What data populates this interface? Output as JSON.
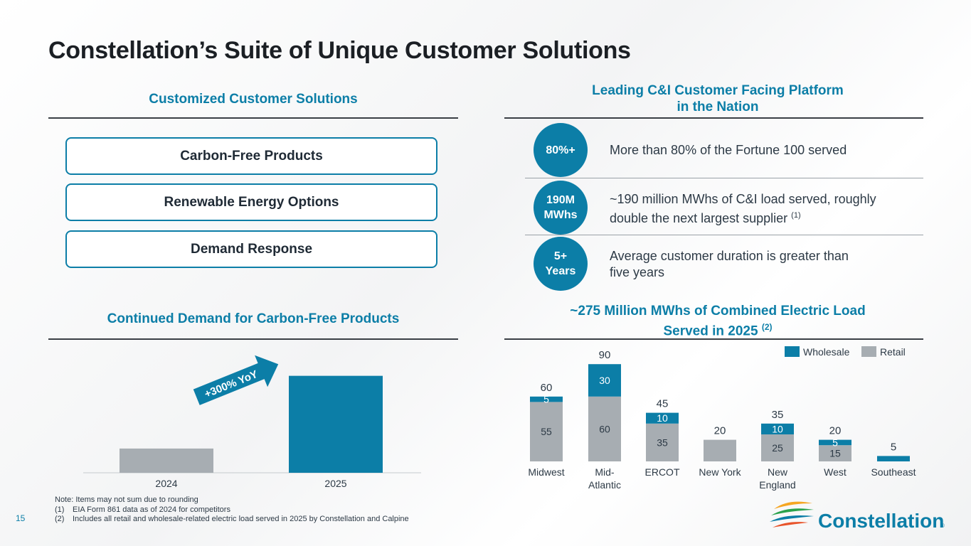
{
  "title": "Constellation’s Suite of Unique Customer Solutions",
  "left_panel": {
    "heading": "Customized Customer Solutions",
    "items": [
      "Carbon-Free Products",
      "Renewable Energy Options",
      "Demand Response"
    ]
  },
  "right_panel": {
    "heading_line1": "Leading C&I Customer Facing Platform",
    "heading_line2": "in the Nation",
    "stats": [
      {
        "badge_line1": "80%+",
        "badge_line2": "",
        "text_line1": "More than 80% of the Fortune 100 served",
        "text_line2": "",
        "sup": ""
      },
      {
        "badge_line1": "190M",
        "badge_line2": "MWhs",
        "text_line1": "~190 million MWhs of C&I load served, roughly",
        "text_line2": "double the next largest supplier ",
        "sup": "(1)"
      },
      {
        "badge_line1": "5+",
        "badge_line2": "Years",
        "text_line1": "Average customer duration is greater than",
        "text_line2": "five years",
        "sup": ""
      }
    ]
  },
  "colors": {
    "accent": "#0c7ea7",
    "retail": "#a7adb2",
    "wholesale": "#0c7ea7",
    "bar_2024": "#a7adb2",
    "bar_2025": "#0c7ea7"
  },
  "chart_data": [
    {
      "type": "bar",
      "title": "Continued Demand for Carbon-Free Products",
      "categories": [
        "2024",
        "2025"
      ],
      "values": [
        1,
        4
      ],
      "annotation": "+300% YoY",
      "xlabel": "",
      "ylabel": "",
      "ylim": [
        0,
        4.4
      ]
    },
    {
      "type": "bar",
      "stacked": true,
      "title_line1": "~275 Million MWhs of Combined Electric Load",
      "title_line2": "Served in 2025 ",
      "title_sup": "(2)",
      "categories": [
        [
          "Midwest"
        ],
        [
          "Mid-",
          "Atlantic"
        ],
        [
          "ERCOT"
        ],
        [
          "New York"
        ],
        [
          "New",
          "England"
        ],
        [
          "West"
        ],
        [
          "Southeast"
        ]
      ],
      "series": [
        {
          "name": "Retail",
          "values": [
            55,
            60,
            35,
            20,
            25,
            15,
            0
          ],
          "labels": [
            "55",
            "60",
            "35",
            "",
            "25",
            "15",
            ""
          ]
        },
        {
          "name": "Wholesale",
          "values": [
            5,
            30,
            10,
            0,
            10,
            5,
            5
          ],
          "labels": [
            "5",
            "30",
            "10",
            "",
            "10",
            "5",
            ""
          ]
        }
      ],
      "totals": [
        "60",
        "90",
        "45",
        "20",
        "35",
        "20",
        "5"
      ],
      "legend": [
        "Wholesale",
        "Retail"
      ],
      "ylim": [
        0,
        100
      ]
    }
  ],
  "footnotes": {
    "note": "Note: Items may not sum due to rounding",
    "items": [
      {
        "num": "(1)",
        "text": "EIA Form 861 data as of 2024 for competitors"
      },
      {
        "num": "(2)",
        "text": "Includes all retail and wholesale-related electric load served in 2025 by Constellation and Calpine"
      }
    ]
  },
  "page_number": "15",
  "logo": {
    "text": "Constellation",
    "mark": "®",
    "colors": [
      "#f5a623",
      "#2ba24c",
      "#0c7ea7",
      "#e8542b"
    ]
  }
}
